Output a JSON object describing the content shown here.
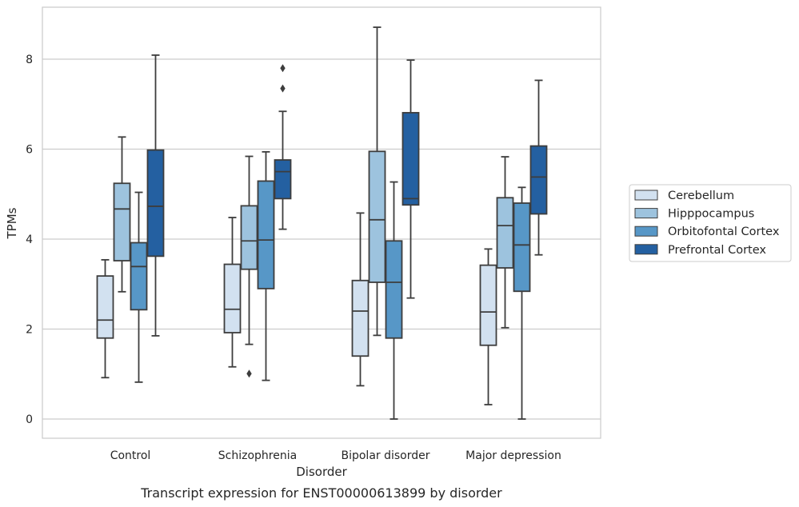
{
  "caption": "Transcript expression for ENST00000613899 by disorder",
  "chart_data": {
    "type": "boxplot",
    "xlabel": "Disorder",
    "ylabel": "TPMs",
    "ylim": [
      -0.4,
      9.2
    ],
    "yticks": [
      0,
      2,
      4,
      6,
      8
    ],
    "grid": "horizontal",
    "legend_position": "right",
    "categories": [
      "Control",
      "Schizophrenia",
      "Bipolar disorder",
      "Major depression"
    ],
    "series": [
      {
        "name": "Cerebellum",
        "color": "#d2e1f0",
        "boxes": [
          {
            "whisker_low": 0.92,
            "q1": 1.8,
            "median": 2.2,
            "q3": 3.18,
            "whisker_high": 3.54,
            "outliers": []
          },
          {
            "whisker_low": 1.16,
            "q1": 1.92,
            "median": 2.44,
            "q3": 3.44,
            "whisker_high": 4.48,
            "outliers": []
          },
          {
            "whisker_low": 0.74,
            "q1": 1.4,
            "median": 2.4,
            "q3": 3.08,
            "whisker_high": 4.58,
            "outliers": []
          },
          {
            "whisker_low": 0.32,
            "q1": 1.64,
            "median": 2.38,
            "q3": 3.42,
            "whisker_high": 3.78,
            "outliers": []
          }
        ]
      },
      {
        "name": "Hipppocampus",
        "color": "#9dc3de",
        "boxes": [
          {
            "whisker_low": 2.83,
            "q1": 3.52,
            "median": 4.67,
            "q3": 5.24,
            "whisker_high": 6.27,
            "outliers": []
          },
          {
            "whisker_low": 1.66,
            "q1": 3.33,
            "median": 3.96,
            "q3": 4.74,
            "whisker_high": 5.84,
            "outliers": [
              1.01
            ]
          },
          {
            "whisker_low": 1.86,
            "q1": 3.04,
            "median": 4.43,
            "q3": 5.95,
            "whisker_high": 8.71,
            "outliers": []
          },
          {
            "whisker_low": 2.03,
            "q1": 3.36,
            "median": 4.3,
            "q3": 4.92,
            "whisker_high": 5.83,
            "outliers": []
          }
        ]
      },
      {
        "name": "Orbitofontal Cortex",
        "color": "#5797c7",
        "boxes": [
          {
            "whisker_low": 0.82,
            "q1": 2.43,
            "median": 3.39,
            "q3": 3.92,
            "whisker_high": 5.04,
            "outliers": []
          },
          {
            "whisker_low": 0.86,
            "q1": 2.9,
            "median": 3.98,
            "q3": 5.29,
            "whisker_high": 5.94,
            "outliers": []
          },
          {
            "whisker_low": 0.0,
            "q1": 1.8,
            "median": 3.04,
            "q3": 3.96,
            "whisker_high": 5.27,
            "outliers": []
          },
          {
            "whisker_low": 0.0,
            "q1": 2.84,
            "median": 3.87,
            "q3": 4.8,
            "whisker_high": 5.15,
            "outliers": []
          }
        ]
      },
      {
        "name": "Prefrontal Cortex",
        "color": "#2460a1",
        "boxes": [
          {
            "whisker_low": 1.85,
            "q1": 3.62,
            "median": 4.73,
            "q3": 5.98,
            "whisker_high": 8.09,
            "outliers": []
          },
          {
            "whisker_low": 4.22,
            "q1": 4.9,
            "median": 5.5,
            "q3": 5.76,
            "whisker_high": 6.84,
            "outliers": [
              7.35,
              7.8
            ]
          },
          {
            "whisker_low": 2.69,
            "q1": 4.76,
            "median": 4.9,
            "q3": 6.81,
            "whisker_high": 7.98,
            "outliers": []
          },
          {
            "whisker_low": 3.65,
            "q1": 4.56,
            "median": 5.38,
            "q3": 6.07,
            "whisker_high": 7.53,
            "outliers": []
          }
        ]
      }
    ]
  }
}
